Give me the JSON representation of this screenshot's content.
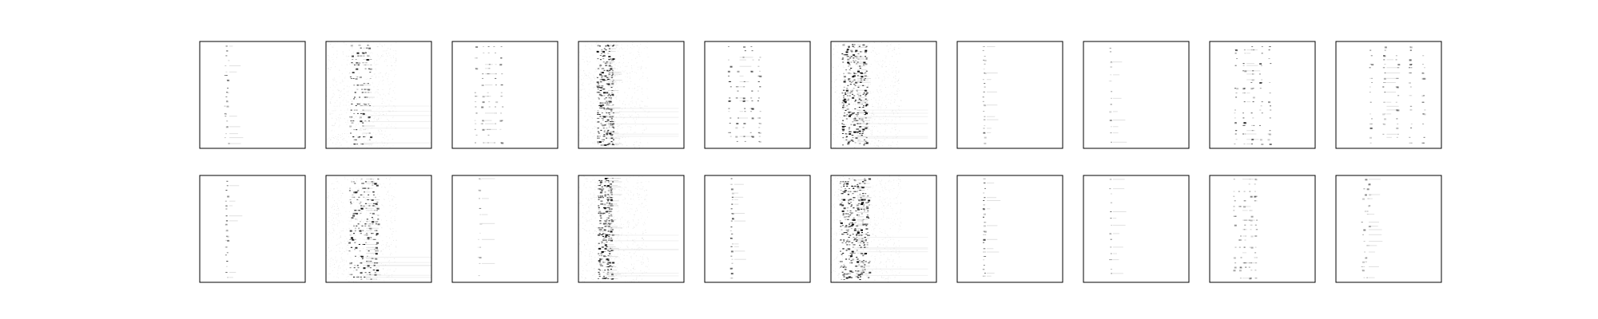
{
  "chart_data": {
    "type": "heatmap",
    "grid": {
      "rows": 2,
      "cols": 10
    },
    "colormap": "grayscale-reversed",
    "axes_ticks": false,
    "panels": [
      {
        "row": 0,
        "col": 0,
        "pattern": "sparse-column",
        "column_center": 0.25,
        "column_spread": 0.02,
        "density": 0.35,
        "rows_active": 20
      },
      {
        "row": 0,
        "col": 1,
        "pattern": "dense-band",
        "column_center": 0.32,
        "column_spread": 0.1,
        "density": 0.55,
        "rows_active": 30
      },
      {
        "row": 0,
        "col": 2,
        "pattern": "multi-column",
        "column_center": 0.28,
        "column_spread": 0.12,
        "density": 0.3,
        "rows_active": 18
      },
      {
        "row": 0,
        "col": 3,
        "pattern": "diffuse-band",
        "column_center": 0.25,
        "column_spread": 0.08,
        "density": 0.6,
        "rows_active": 60
      },
      {
        "row": 0,
        "col": 4,
        "pattern": "multi-column",
        "column_center": 0.3,
        "column_spread": 0.14,
        "density": 0.4,
        "rows_active": 20
      },
      {
        "row": 0,
        "col": 5,
        "pattern": "diffuse-band",
        "column_center": 0.22,
        "column_spread": 0.12,
        "density": 0.65,
        "rows_active": 70
      },
      {
        "row": 0,
        "col": 6,
        "pattern": "sparse-column",
        "column_center": 0.25,
        "column_spread": 0.01,
        "density": 0.3,
        "rows_active": 22
      },
      {
        "row": 0,
        "col": 7,
        "pattern": "sparse-column",
        "column_center": 0.25,
        "column_spread": 0.01,
        "density": 0.25,
        "rows_active": 14
      },
      {
        "row": 0,
        "col": 8,
        "pattern": "multi-column",
        "column_center": 0.32,
        "column_spread": 0.16,
        "density": 0.4,
        "rows_active": 24
      },
      {
        "row": 0,
        "col": 9,
        "pattern": "multi-column",
        "column_center": 0.45,
        "column_spread": 0.25,
        "density": 0.35,
        "rows_active": 22
      },
      {
        "row": 1,
        "col": 0,
        "pattern": "sparse-column",
        "column_center": 0.25,
        "column_spread": 0.01,
        "density": 0.35,
        "rows_active": 20
      },
      {
        "row": 1,
        "col": 1,
        "pattern": "dense-band",
        "column_center": 0.35,
        "column_spread": 0.14,
        "density": 0.6,
        "rows_active": 45
      },
      {
        "row": 1,
        "col": 2,
        "pattern": "sparse-column",
        "column_center": 0.25,
        "column_spread": 0.01,
        "density": 0.22,
        "rows_active": 12
      },
      {
        "row": 1,
        "col": 3,
        "pattern": "diffuse-band",
        "column_center": 0.25,
        "column_spread": 0.07,
        "density": 0.6,
        "rows_active": 60
      },
      {
        "row": 1,
        "col": 4,
        "pattern": "sparse-column",
        "column_center": 0.25,
        "column_spread": 0.01,
        "density": 0.4,
        "rows_active": 24
      },
      {
        "row": 1,
        "col": 5,
        "pattern": "diffuse-band",
        "column_center": 0.22,
        "column_spread": 0.14,
        "density": 0.65,
        "rows_active": 70
      },
      {
        "row": 1,
        "col": 6,
        "pattern": "sparse-column",
        "column_center": 0.25,
        "column_spread": 0.01,
        "density": 0.35,
        "rows_active": 24
      },
      {
        "row": 1,
        "col": 7,
        "pattern": "sparse-column",
        "column_center": 0.25,
        "column_spread": 0.01,
        "density": 0.25,
        "rows_active": 14
      },
      {
        "row": 1,
        "col": 8,
        "pattern": "multi-column",
        "column_center": 0.28,
        "column_spread": 0.1,
        "density": 0.3,
        "rows_active": 20
      },
      {
        "row": 1,
        "col": 9,
        "pattern": "sparse-column",
        "column_center": 0.28,
        "column_spread": 0.04,
        "density": 0.3,
        "rows_active": 20
      }
    ]
  }
}
